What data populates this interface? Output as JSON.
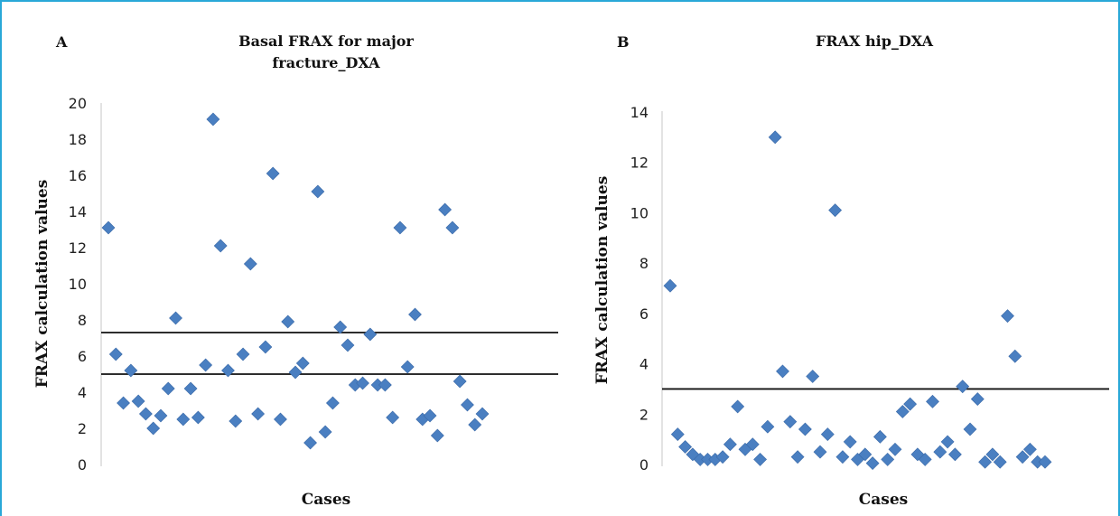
{
  "chart_data": [
    {
      "type": "scatter",
      "panel_label": "A",
      "title_lines": [
        "Basal FRAX for major",
        "fracture_DXA"
      ],
      "xlabel": "Cases",
      "ylabel": "FRAX calculation values",
      "yticks": [
        "0",
        "2",
        "4",
        "6",
        "8",
        "10",
        "12",
        "14",
        "16",
        "18",
        "20"
      ],
      "ylim": [
        0,
        20
      ],
      "grid": false,
      "marker_color": "#4a7fc1",
      "reference_lines": [
        7.3,
        5.0
      ],
      "points": [
        {
          "x": 1,
          "y": 13.1
        },
        {
          "x": 2,
          "y": 6.1
        },
        {
          "x": 3,
          "y": 3.4
        },
        {
          "x": 4,
          "y": 5.2
        },
        {
          "x": 5,
          "y": 3.5
        },
        {
          "x": 6,
          "y": 2.8
        },
        {
          "x": 7,
          "y": 2.0
        },
        {
          "x": 8,
          "y": 2.7
        },
        {
          "x": 9,
          "y": 4.2
        },
        {
          "x": 10,
          "y": 8.1
        },
        {
          "x": 11,
          "y": 2.5
        },
        {
          "x": 12,
          "y": 4.2
        },
        {
          "x": 13,
          "y": 2.6
        },
        {
          "x": 14,
          "y": 5.5
        },
        {
          "x": 15,
          "y": 19.1
        },
        {
          "x": 16,
          "y": 12.1
        },
        {
          "x": 17,
          "y": 5.2
        },
        {
          "x": 18,
          "y": 2.4
        },
        {
          "x": 19,
          "y": 6.1
        },
        {
          "x": 20,
          "y": 11.1
        },
        {
          "x": 21,
          "y": 2.8
        },
        {
          "x": 22,
          "y": 6.5
        },
        {
          "x": 23,
          "y": 16.1
        },
        {
          "x": 24,
          "y": 2.5
        },
        {
          "x": 25,
          "y": 7.9
        },
        {
          "x": 26,
          "y": 5.1
        },
        {
          "x": 27,
          "y": 5.6
        },
        {
          "x": 28,
          "y": 1.2
        },
        {
          "x": 29,
          "y": 15.1
        },
        {
          "x": 30,
          "y": 1.8
        },
        {
          "x": 31,
          "y": 3.4
        },
        {
          "x": 32,
          "y": 7.6
        },
        {
          "x": 33,
          "y": 6.6
        },
        {
          "x": 34,
          "y": 4.4
        },
        {
          "x": 35,
          "y": 4.5
        },
        {
          "x": 36,
          "y": 7.2
        },
        {
          "x": 37,
          "y": 4.4
        },
        {
          "x": 38,
          "y": 4.4
        },
        {
          "x": 39,
          "y": 2.6
        },
        {
          "x": 40,
          "y": 13.1
        },
        {
          "x": 41,
          "y": 5.4
        },
        {
          "x": 42,
          "y": 8.3
        },
        {
          "x": 43,
          "y": 2.5
        },
        {
          "x": 44,
          "y": 2.7
        },
        {
          "x": 45,
          "y": 1.6
        },
        {
          "x": 46,
          "y": 14.1
        },
        {
          "x": 47,
          "y": 13.1
        },
        {
          "x": 48,
          "y": 4.6
        },
        {
          "x": 49,
          "y": 3.3
        },
        {
          "x": 50,
          "y": 2.2
        },
        {
          "x": 51,
          "y": 2.8
        }
      ]
    },
    {
      "type": "scatter",
      "panel_label": "B",
      "title_lines": [
        "FRAX hip_DXA"
      ],
      "xlabel": "Cases",
      "ylabel": "FRAX calculation values",
      "yticks": [
        "0",
        "2",
        "4",
        "6",
        "8",
        "10",
        "12",
        "14"
      ],
      "ylim": [
        0,
        14
      ],
      "grid": false,
      "marker_color": "#4a7fc1",
      "reference_lines": [
        3.0
      ],
      "points": [
        {
          "x": 1,
          "y": 7.1
        },
        {
          "x": 2,
          "y": 1.2
        },
        {
          "x": 3,
          "y": 0.7
        },
        {
          "x": 4,
          "y": 0.4
        },
        {
          "x": 5,
          "y": 0.2
        },
        {
          "x": 6,
          "y": 0.2
        },
        {
          "x": 7,
          "y": 0.2
        },
        {
          "x": 8,
          "y": 0.3
        },
        {
          "x": 9,
          "y": 0.8
        },
        {
          "x": 10,
          "y": 2.3
        },
        {
          "x": 11,
          "y": 0.6
        },
        {
          "x": 12,
          "y": 0.8
        },
        {
          "x": 13,
          "y": 0.2
        },
        {
          "x": 14,
          "y": 1.5
        },
        {
          "x": 15,
          "y": 13.0
        },
        {
          "x": 16,
          "y": 3.7
        },
        {
          "x": 17,
          "y": 1.7
        },
        {
          "x": 18,
          "y": 0.3
        },
        {
          "x": 19,
          "y": 1.4
        },
        {
          "x": 20,
          "y": 3.5
        },
        {
          "x": 21,
          "y": 0.5
        },
        {
          "x": 22,
          "y": 1.2
        },
        {
          "x": 23,
          "y": 10.1
        },
        {
          "x": 24,
          "y": 0.3
        },
        {
          "x": 25,
          "y": 0.9
        },
        {
          "x": 26,
          "y": 0.2
        },
        {
          "x": 27,
          "y": 0.4
        },
        {
          "x": 28,
          "y": 0.05
        },
        {
          "x": 29,
          "y": 1.1
        },
        {
          "x": 30,
          "y": 0.2
        },
        {
          "x": 31,
          "y": 0.6
        },
        {
          "x": 32,
          "y": 2.1
        },
        {
          "x": 33,
          "y": 2.4
        },
        {
          "x": 34,
          "y": 0.4
        },
        {
          "x": 35,
          "y": 0.2
        },
        {
          "x": 36,
          "y": 2.5
        },
        {
          "x": 37,
          "y": 0.5
        },
        {
          "x": 38,
          "y": 0.9
        },
        {
          "x": 39,
          "y": 0.4
        },
        {
          "x": 40,
          "y": 3.1
        },
        {
          "x": 41,
          "y": 1.4
        },
        {
          "x": 42,
          "y": 2.6
        },
        {
          "x": 43,
          "y": 0.1
        },
        {
          "x": 44,
          "y": 0.4
        },
        {
          "x": 45,
          "y": 0.1
        },
        {
          "x": 46,
          "y": 5.9
        },
        {
          "x": 47,
          "y": 4.3
        },
        {
          "x": 48,
          "y": 0.3
        },
        {
          "x": 49,
          "y": 0.6
        },
        {
          "x": 50,
          "y": 0.1
        },
        {
          "x": 51,
          "y": 0.1
        }
      ]
    }
  ]
}
